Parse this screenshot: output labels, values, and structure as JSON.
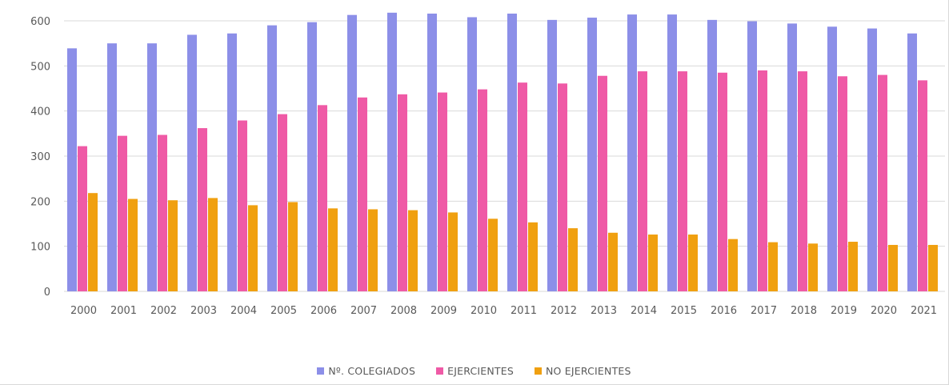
{
  "chart_data": {
    "type": "bar",
    "title": "",
    "xlabel": "",
    "ylabel": "",
    "ylim": [
      0,
      600
    ],
    "yticks": [
      0,
      100,
      200,
      300,
      400,
      500,
      600
    ],
    "grid": true,
    "legend_position": "bottom",
    "categories": [
      "2000",
      "2001",
      "2002",
      "2003",
      "2004",
      "2005",
      "2006",
      "2007",
      "2008",
      "2009",
      "2010",
      "2011",
      "2012",
      "2013",
      "2014",
      "2015",
      "2016",
      "2017",
      "2018",
      "2019",
      "2020",
      "2021"
    ],
    "series": [
      {
        "name": "Nº. COLEGIADOS",
        "color": "#8c8fe8",
        "values": [
          539,
          550,
          550,
          569,
          572,
          590,
          597,
          613,
          618,
          616,
          608,
          616,
          602,
          607,
          614,
          614,
          602,
          599,
          594,
          587,
          583,
          572
        ]
      },
      {
        "name": "EJERCIENTES",
        "color": "#ef5aa6",
        "values": [
          322,
          345,
          347,
          362,
          379,
          393,
          413,
          430,
          437,
          441,
          448,
          463,
          461,
          478,
          488,
          488,
          485,
          490,
          488,
          477,
          480,
          468
        ]
      },
      {
        "name": "NO EJERCIENTES",
        "color": "#f0a010",
        "values": [
          218,
          205,
          202,
          207,
          191,
          198,
          184,
          182,
          180,
          175,
          161,
          153,
          140,
          130,
          126,
          126,
          116,
          109,
          106,
          110,
          103,
          103
        ]
      }
    ]
  }
}
